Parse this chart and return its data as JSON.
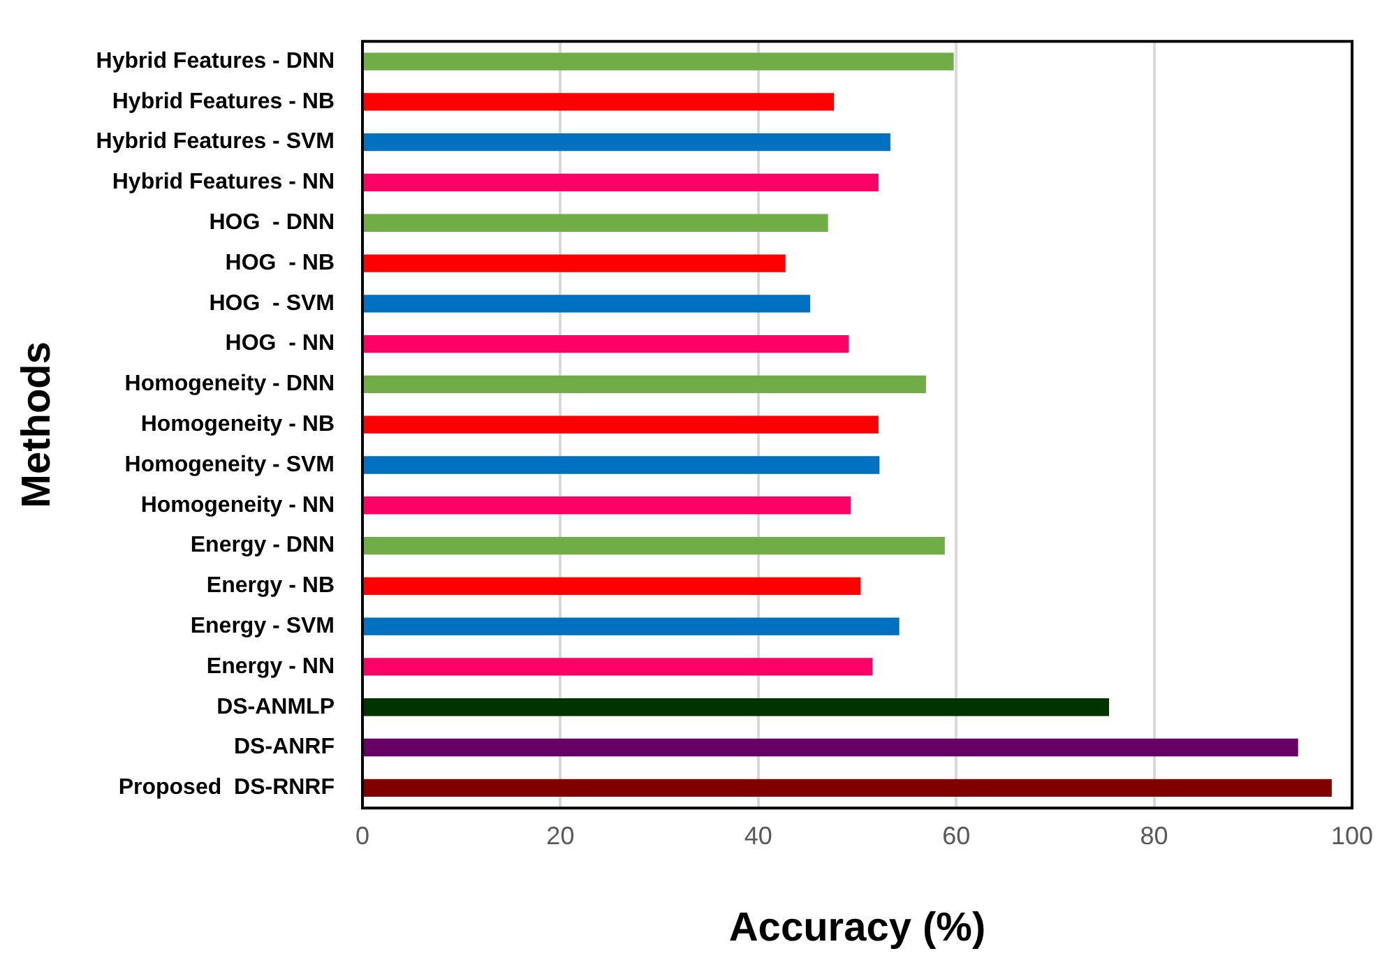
{
  "chart_data": {
    "type": "bar",
    "orientation": "horizontal",
    "xlabel": "Accuracy (%)",
    "ylabel": "Methods",
    "categories": [
      "Hybrid Features - DNN",
      "Hybrid Features - NB",
      "Hybrid Features - SVM",
      "Hybrid Features - NN",
      "HOG  - DNN",
      "HOG  - NB",
      "HOG  - SVM",
      "HOG  - NN",
      "Homogeneity - DNN",
      "Homogeneity - NB",
      "Homogeneity - SVM",
      "Homogeneity - NN",
      "Energy - DNN",
      "Energy - NB",
      "Energy - SVM",
      "Energy - NN",
      "DS-ANMLP",
      "DS-ANRF",
      "Proposed  DS-RNRF"
    ],
    "values": [
      59.7,
      47.6,
      53.3,
      52.1,
      47.0,
      42.7,
      45.2,
      49.1,
      56.9,
      52.1,
      52.2,
      49.3,
      58.8,
      50.3,
      54.2,
      51.5,
      75.4,
      94.5,
      97.9
    ],
    "colors": [
      "#70ad47",
      "#ff0000",
      "#0070c0",
      "#ff0066",
      "#70ad47",
      "#ff0000",
      "#0070c0",
      "#ff0066",
      "#70ad47",
      "#ff0000",
      "#0070c0",
      "#ff0066",
      "#70ad47",
      "#ff0000",
      "#0070c0",
      "#ff0066",
      "#003300",
      "#660066",
      "#800000"
    ],
    "xlim": [
      0,
      100
    ],
    "xticks": [
      0,
      20,
      40,
      60,
      80,
      100
    ],
    "grid": "x",
    "legend": false
  }
}
